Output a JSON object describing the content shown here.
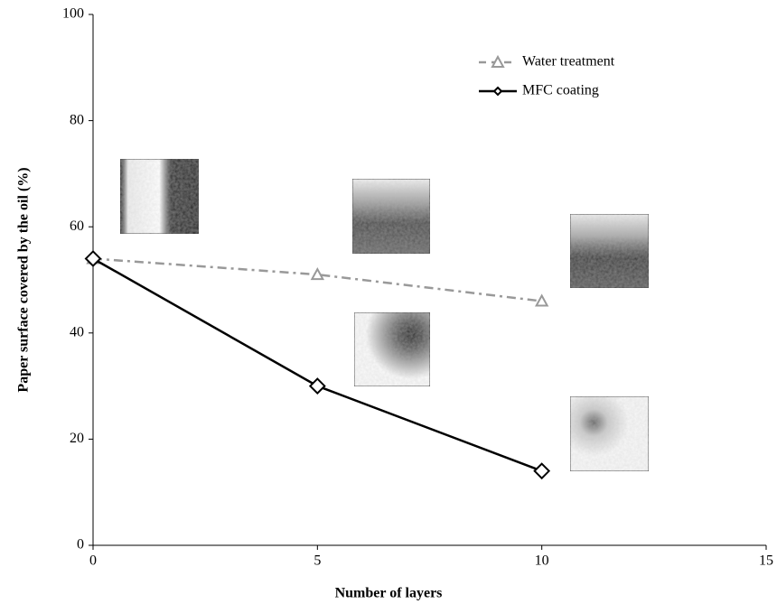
{
  "chart_data": {
    "type": "line",
    "x_label": "Number of layers",
    "y_label": "Paper surface covered by the oil (%)",
    "x": [
      0,
      5,
      10
    ],
    "series": [
      {
        "name": "Water treatment",
        "color": "#999999",
        "dash": "dashdot",
        "marker": "triangle",
        "values": [
          54,
          51,
          46
        ]
      },
      {
        "name": "MFC coating",
        "color": "#000000",
        "dash": "solid",
        "marker": "diamond",
        "values": [
          54,
          30,
          14
        ]
      }
    ],
    "xlim": [
      0,
      15
    ],
    "xticks": [
      0,
      5,
      10,
      15
    ],
    "ylim": [
      0,
      100
    ],
    "yticks": [
      0,
      20,
      40,
      60,
      80,
      100
    ],
    "grid": false,
    "legend": "top-right"
  }
}
